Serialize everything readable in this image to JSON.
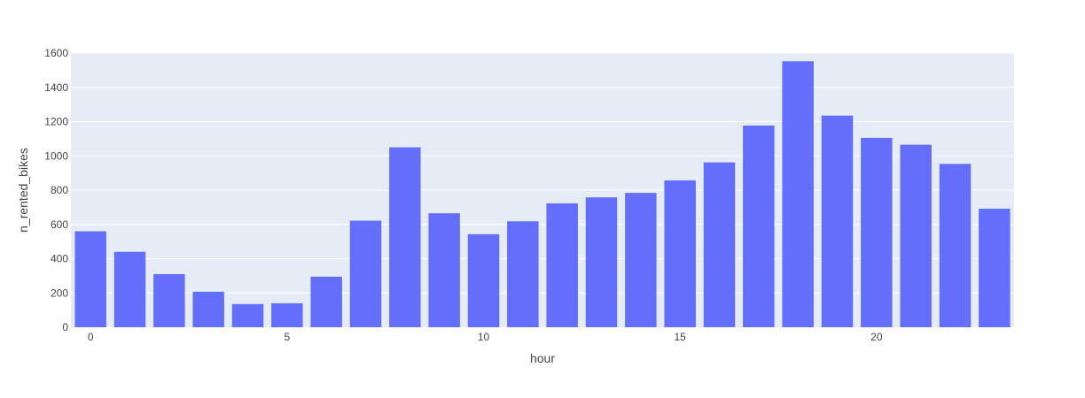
{
  "chart_data": {
    "type": "bar",
    "xlabel": "hour",
    "ylabel": "n_rented_bikes",
    "x": [
      0,
      1,
      2,
      3,
      4,
      5,
      6,
      7,
      8,
      9,
      10,
      11,
      12,
      13,
      14,
      15,
      16,
      17,
      18,
      19,
      20,
      21,
      22,
      23
    ],
    "values": [
      560,
      440,
      310,
      207,
      135,
      140,
      295,
      622,
      1050,
      665,
      543,
      618,
      723,
      758,
      784,
      857,
      962,
      1177,
      1552,
      1235,
      1105,
      1065,
      953,
      692
    ],
    "xlim": [
      -0.5,
      23.5
    ],
    "ylim": [
      0,
      1600
    ],
    "xticks": [
      0,
      5,
      10,
      15,
      20
    ],
    "yticks": [
      0,
      200,
      400,
      600,
      800,
      1000,
      1200,
      1400,
      1600
    ],
    "grid": true,
    "colors": {
      "bar": "#636efa",
      "plot_bg": "#e5ecf6",
      "grid": "#ffffff",
      "text": "#444444"
    }
  }
}
